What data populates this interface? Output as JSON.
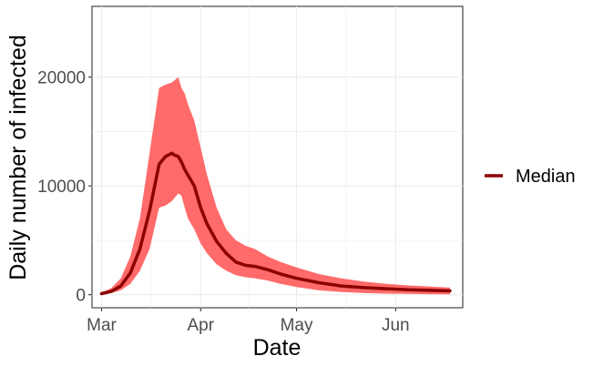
{
  "chart_data": {
    "type": "line",
    "xlabel": "Date",
    "ylabel": "Daily number of infected",
    "x_ticks": [
      "Mar",
      "Apr",
      "May",
      "Jun"
    ],
    "x_tick_dates": [
      "2020-03-01",
      "2020-04-01",
      "2020-05-01",
      "2020-06-01"
    ],
    "y_ticks": [
      0,
      10000,
      20000
    ],
    "y_tick_labels": [
      "0",
      "10000",
      "20000"
    ],
    "xlim": [
      "2020-02-27",
      "2020-06-22"
    ],
    "ylim": [
      -1200,
      26500
    ],
    "grid": true,
    "legend_position": "right",
    "series": [
      {
        "name": "Median",
        "color": "#8B0000",
        "x": [
          "2020-03-01",
          "2020-03-04",
          "2020-03-07",
          "2020-03-10",
          "2020-03-13",
          "2020-03-16",
          "2020-03-19",
          "2020-03-21",
          "2020-03-23",
          "2020-03-24",
          "2020-03-25",
          "2020-03-26",
          "2020-03-27",
          "2020-03-28",
          "2020-03-30",
          "2020-04-01",
          "2020-04-03",
          "2020-04-06",
          "2020-04-09",
          "2020-04-12",
          "2020-04-15",
          "2020-04-18",
          "2020-04-22",
          "2020-04-26",
          "2020-05-01",
          "2020-05-08",
          "2020-05-15",
          "2020-05-22",
          "2020-05-29",
          "2020-06-05",
          "2020-06-12",
          "2020-06-18"
        ],
        "values": [
          100,
          300,
          800,
          2000,
          4200,
          7700,
          12000,
          12700,
          13000,
          12800,
          12700,
          12200,
          11500,
          11000,
          10000,
          8000,
          6500,
          4900,
          3800,
          3000,
          2700,
          2600,
          2300,
          1900,
          1500,
          1100,
          800,
          650,
          550,
          450,
          400,
          350
        ]
      }
    ],
    "band": {
      "fill": "#FF6A6A",
      "x": [
        "2020-03-01",
        "2020-03-04",
        "2020-03-07",
        "2020-03-10",
        "2020-03-13",
        "2020-03-16",
        "2020-03-19",
        "2020-03-21",
        "2020-03-23",
        "2020-03-25",
        "2020-03-26",
        "2020-03-27",
        "2020-03-28",
        "2020-03-30",
        "2020-04-01",
        "2020-04-03",
        "2020-04-06",
        "2020-04-09",
        "2020-04-12",
        "2020-04-15",
        "2020-04-18",
        "2020-04-22",
        "2020-04-26",
        "2020-05-01",
        "2020-05-08",
        "2020-05-15",
        "2020-05-22",
        "2020-05-29",
        "2020-06-05",
        "2020-06-12",
        "2020-06-18"
      ],
      "upper": [
        200,
        600,
        1500,
        3500,
        7000,
        13000,
        19000,
        19300,
        19500,
        20000,
        19000,
        18500,
        17500,
        16000,
        13500,
        11000,
        8000,
        6000,
        5000,
        4500,
        4200,
        3500,
        3000,
        2500,
        1900,
        1500,
        1200,
        1000,
        850,
        750,
        650
      ],
      "lower": [
        50,
        150,
        400,
        1000,
        2200,
        4200,
        8000,
        8200,
        8600,
        9300,
        9100,
        8000,
        7000,
        6000,
        4700,
        3800,
        2800,
        2200,
        1800,
        1600,
        1500,
        1300,
        1000,
        700,
        400,
        250,
        150,
        100,
        70,
        50,
        40
      ]
    }
  }
}
